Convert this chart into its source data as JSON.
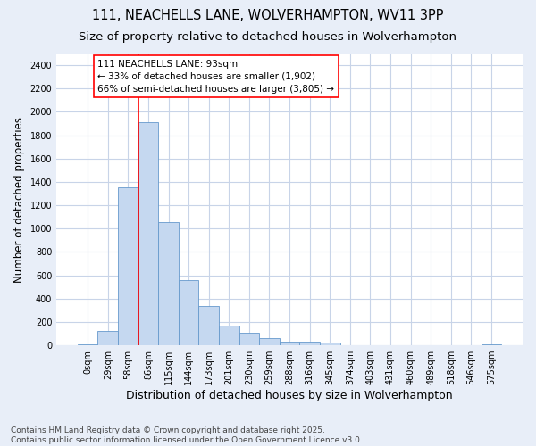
{
  "title_line1": "111, NEACHELLS LANE, WOLVERHAMPTON, WV11 3PP",
  "title_line2": "Size of property relative to detached houses in Wolverhampton",
  "xlabel": "Distribution of detached houses by size in Wolverhampton",
  "ylabel": "Number of detached properties",
  "footnote": "Contains HM Land Registry data © Crown copyright and database right 2025.\nContains public sector information licensed under the Open Government Licence v3.0.",
  "bar_labels": [
    "0sqm",
    "29sqm",
    "58sqm",
    "86sqm",
    "115sqm",
    "144sqm",
    "173sqm",
    "201sqm",
    "230sqm",
    "259sqm",
    "288sqm",
    "316sqm",
    "345sqm",
    "374sqm",
    "403sqm",
    "431sqm",
    "460sqm",
    "489sqm",
    "518sqm",
    "546sqm",
    "575sqm"
  ],
  "bar_values": [
    10,
    125,
    1355,
    1910,
    1055,
    560,
    335,
    170,
    110,
    60,
    35,
    30,
    25,
    0,
    0,
    0,
    0,
    0,
    0,
    0,
    10
  ],
  "bar_color": "#c5d8f0",
  "bar_edge_color": "#6699cc",
  "vline_x_index": 3,
  "vline_color": "red",
  "annotation_text": "111 NEACHELLS LANE: 93sqm\n← 33% of detached houses are smaller (1,902)\n66% of semi-detached houses are larger (3,805) →",
  "annotation_box_facecolor": "white",
  "annotation_box_edgecolor": "red",
  "ylim": [
    0,
    2500
  ],
  "yticks": [
    0,
    200,
    400,
    600,
    800,
    1000,
    1200,
    1400,
    1600,
    1800,
    2000,
    2200,
    2400
  ],
  "bg_color": "#e8eef8",
  "plot_bg_color": "white",
  "grid_color": "#c8d4e8",
  "title_fontsize": 10.5,
  "subtitle_fontsize": 9.5,
  "xlabel_fontsize": 9,
  "ylabel_fontsize": 8.5,
  "tick_fontsize": 7,
  "annotation_fontsize": 7.5,
  "footnote_fontsize": 6.5
}
